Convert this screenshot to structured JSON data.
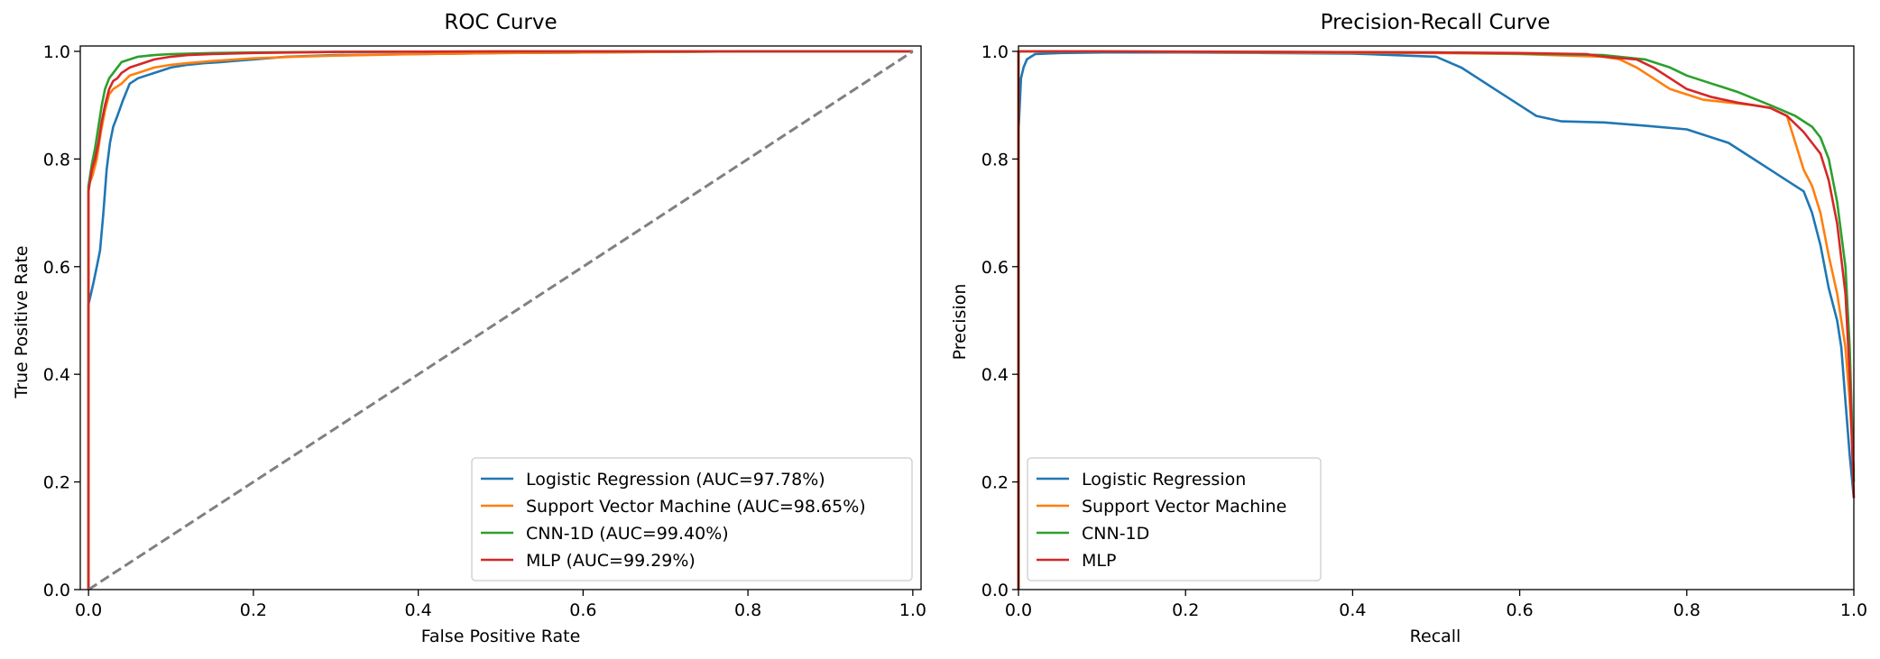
{
  "chart_data": [
    {
      "type": "line",
      "title": "ROC Curve",
      "xlabel": "False Positive Rate",
      "ylabel": "True Positive Rate",
      "xlim": [
        -0.01,
        1.01
      ],
      "ylim": [
        0.0,
        1.01
      ],
      "xticks": [
        0.0,
        0.2,
        0.4,
        0.6,
        0.8,
        1.0
      ],
      "xtick_labels": [
        "0.0",
        "0.2",
        "0.4",
        "0.6",
        "0.8",
        "1.0"
      ],
      "yticks": [
        0.0,
        0.2,
        0.4,
        0.6,
        0.8,
        1.0
      ],
      "ytick_labels": [
        "0.0",
        "0.2",
        "0.4",
        "0.6",
        "0.8",
        "1.0"
      ],
      "grid": false,
      "legend": "lower-right",
      "series": [
        {
          "name": "Logistic Regression (AUC=97.78%)",
          "color": "#1f77b4",
          "x": [
            0.0,
            0.0,
            0.003,
            0.006,
            0.01,
            0.014,
            0.018,
            0.022,
            0.026,
            0.03,
            0.035,
            0.042,
            0.05,
            0.06,
            0.07,
            0.08,
            0.09,
            0.1,
            0.12,
            0.14,
            0.16,
            0.2,
            0.24,
            0.3,
            0.4,
            0.5,
            0.6,
            0.7,
            0.8,
            0.9,
            1.0
          ],
          "y": [
            0.0,
            0.53,
            0.55,
            0.57,
            0.6,
            0.63,
            0.7,
            0.78,
            0.83,
            0.86,
            0.88,
            0.91,
            0.94,
            0.95,
            0.955,
            0.96,
            0.965,
            0.97,
            0.975,
            0.978,
            0.98,
            0.985,
            0.99,
            0.993,
            0.995,
            0.997,
            0.998,
            0.999,
            1.0,
            1.0,
            1.0
          ]
        },
        {
          "name": "Support Vector Machine (AUC=98.65%)",
          "color": "#ff7f0e",
          "x": [
            0.0,
            0.0,
            0.005,
            0.01,
            0.015,
            0.02,
            0.025,
            0.03,
            0.035,
            0.04,
            0.05,
            0.06,
            0.07,
            0.08,
            0.1,
            0.12,
            0.15,
            0.2,
            0.25,
            0.3,
            0.4,
            0.5,
            0.6,
            0.8,
            1.0
          ],
          "y": [
            0.0,
            0.75,
            0.77,
            0.8,
            0.85,
            0.89,
            0.92,
            0.93,
            0.935,
            0.94,
            0.955,
            0.96,
            0.965,
            0.97,
            0.975,
            0.978,
            0.982,
            0.987,
            0.99,
            0.992,
            0.995,
            0.997,
            0.998,
            1.0,
            1.0
          ]
        },
        {
          "name": "CNN-1D (AUC=99.40%)",
          "color": "#2ca02c",
          "x": [
            0.0,
            0.0,
            0.004,
            0.008,
            0.012,
            0.016,
            0.02,
            0.025,
            0.03,
            0.035,
            0.04,
            0.05,
            0.06,
            0.08,
            0.1,
            0.15,
            0.2,
            0.3,
            0.5,
            1.0
          ],
          "y": [
            0.0,
            0.75,
            0.79,
            0.82,
            0.86,
            0.9,
            0.93,
            0.95,
            0.96,
            0.97,
            0.98,
            0.985,
            0.99,
            0.993,
            0.995,
            0.997,
            0.998,
            0.999,
            1.0,
            1.0
          ]
        },
        {
          "name": "MLP (AUC=99.29%)",
          "color": "#d62728",
          "x": [
            0.0,
            0.0,
            0.004,
            0.008,
            0.012,
            0.016,
            0.02,
            0.025,
            0.03,
            0.035,
            0.04,
            0.05,
            0.06,
            0.07,
            0.08,
            0.1,
            0.12,
            0.15,
            0.2,
            0.3,
            0.5,
            1.0
          ],
          "y": [
            0.0,
            0.74,
            0.78,
            0.8,
            0.83,
            0.87,
            0.9,
            0.93,
            0.945,
            0.95,
            0.96,
            0.97,
            0.975,
            0.98,
            0.985,
            0.99,
            0.993,
            0.995,
            0.997,
            0.999,
            1.0,
            1.0
          ]
        },
        {
          "name": "",
          "color": "#808080",
          "dashed": true,
          "x": [
            0.0,
            1.0
          ],
          "y": [
            0.0,
            1.0
          ]
        }
      ]
    },
    {
      "type": "line",
      "title": "Precision-Recall Curve",
      "xlabel": "Recall",
      "ylabel": "Precision",
      "xlim": [
        0.0,
        1.0
      ],
      "ylim": [
        0.0,
        1.01
      ],
      "xticks": [
        0.0,
        0.2,
        0.4,
        0.6,
        0.8,
        1.0
      ],
      "xtick_labels": [
        "0.0",
        "0.2",
        "0.4",
        "0.6",
        "0.8",
        "1.0"
      ],
      "yticks": [
        0.0,
        0.2,
        0.4,
        0.6,
        0.8,
        1.0
      ],
      "ytick_labels": [
        "0.0",
        "0.2",
        "0.4",
        "0.6",
        "0.8",
        "1.0"
      ],
      "grid": false,
      "legend": "lower-left",
      "series": [
        {
          "name": "Logistic Regression",
          "color": "#1f77b4",
          "x": [
            0.0,
            0.0,
            0.003,
            0.006,
            0.01,
            0.015,
            0.02,
            0.05,
            0.1,
            0.2,
            0.3,
            0.4,
            0.5,
            0.53,
            0.55,
            0.57,
            0.6,
            0.62,
            0.65,
            0.7,
            0.75,
            0.8,
            0.85,
            0.88,
            0.9,
            0.92,
            0.94,
            0.95,
            0.96,
            0.97,
            0.98,
            0.985,
            0.99,
            0.995,
            1.0
          ],
          "y": [
            0.0,
            0.85,
            0.95,
            0.97,
            0.985,
            0.99,
            0.995,
            0.997,
            0.998,
            0.998,
            0.997,
            0.996,
            0.99,
            0.97,
            0.95,
            0.93,
            0.9,
            0.88,
            0.87,
            0.868,
            0.862,
            0.855,
            0.83,
            0.8,
            0.78,
            0.76,
            0.74,
            0.7,
            0.64,
            0.56,
            0.5,
            0.45,
            0.35,
            0.25,
            0.17
          ]
        },
        {
          "name": "Support Vector Machine",
          "color": "#ff7f0e",
          "x": [
            0.0,
            0.0,
            0.1,
            0.3,
            0.5,
            0.6,
            0.7,
            0.72,
            0.74,
            0.76,
            0.78,
            0.8,
            0.82,
            0.85,
            0.88,
            0.9,
            0.92,
            0.93,
            0.94,
            0.95,
            0.96,
            0.97,
            0.98,
            0.99,
            0.995,
            1.0
          ],
          "y": [
            0.0,
            1.0,
            1.0,
            0.998,
            0.997,
            0.995,
            0.99,
            0.985,
            0.97,
            0.95,
            0.93,
            0.92,
            0.91,
            0.905,
            0.9,
            0.895,
            0.88,
            0.83,
            0.78,
            0.75,
            0.7,
            0.62,
            0.55,
            0.45,
            0.35,
            0.22
          ]
        },
        {
          "name": "CNN-1D",
          "color": "#2ca02c",
          "x": [
            0.0,
            0.0,
            0.1,
            0.3,
            0.5,
            0.6,
            0.7,
            0.75,
            0.78,
            0.8,
            0.83,
            0.86,
            0.9,
            0.93,
            0.95,
            0.96,
            0.97,
            0.98,
            0.99,
            0.995,
            1.0
          ],
          "y": [
            0.0,
            1.0,
            1.0,
            0.999,
            0.998,
            0.996,
            0.993,
            0.985,
            0.97,
            0.955,
            0.94,
            0.925,
            0.9,
            0.88,
            0.86,
            0.84,
            0.8,
            0.72,
            0.6,
            0.45,
            0.2
          ]
        },
        {
          "name": "MLP",
          "color": "#d62728",
          "x": [
            0.0,
            0.0,
            0.1,
            0.3,
            0.5,
            0.6,
            0.68,
            0.7,
            0.74,
            0.76,
            0.78,
            0.8,
            0.83,
            0.86,
            0.9,
            0.92,
            0.94,
            0.95,
            0.96,
            0.97,
            0.98,
            0.99,
            0.995,
            1.0
          ],
          "y": [
            0.0,
            1.0,
            1.0,
            0.999,
            0.998,
            0.997,
            0.995,
            0.99,
            0.985,
            0.97,
            0.95,
            0.93,
            0.915,
            0.905,
            0.895,
            0.88,
            0.85,
            0.83,
            0.81,
            0.76,
            0.68,
            0.55,
            0.4,
            0.17
          ]
        }
      ]
    }
  ]
}
